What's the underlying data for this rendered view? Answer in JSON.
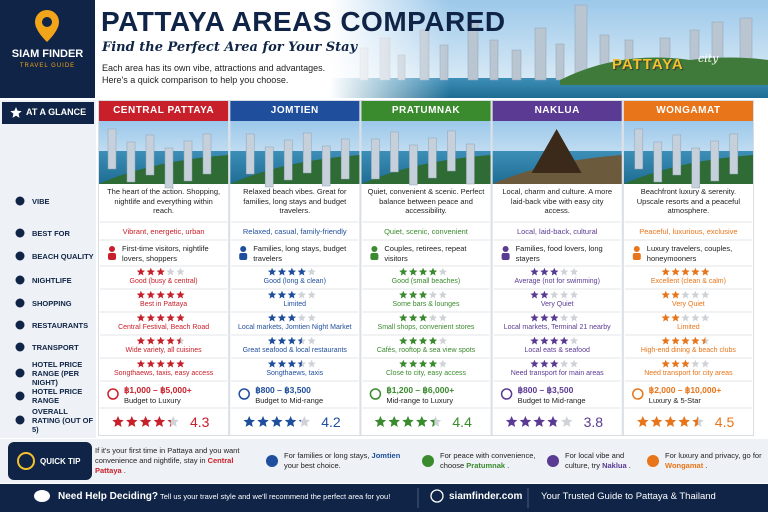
{
  "header": {
    "logo_title": "SIAM FINDER",
    "logo_subtitle": "TRAVEL GUIDE",
    "title": "PATTAYA AREAS COMPARED",
    "subtitle": "Find the Perfect Area for Your Stay",
    "intro": "Each area has its own vibe, attractions and advantages. Here's a quick comparison to help you choose.",
    "city_sign": "PATTAYA",
    "city_script": "city"
  },
  "table": {
    "glance": "AT A GLANCE",
    "row_labels": [
      "VIBE",
      "BEST FOR",
      "BEACH QUALITY",
      "NIGHTLIFE",
      "SHOPPING",
      "RESTAURANTS",
      "TRANSPORT",
      "HOTEL PRICE RANGE (PER NIGHT)",
      "HOTEL PRICE RANGE",
      "OVERALL RATING (OUT OF 5)"
    ],
    "areas": [
      {
        "name": "CENTRAL PATTAYA",
        "color": "#c8202a",
        "vibe": "The heart of the action. Shopping, nightlife and everything within reach.",
        "tag": "Vibrant, energetic, urban",
        "best_for": "First-time visitors, nightlife lovers, shoppers",
        "ratings": [
          {
            "stars": 3,
            "label": "Good (busy & central)"
          },
          {
            "stars": 5,
            "label": "Best in Pattaya"
          },
          {
            "stars": 5,
            "label": "Central Festival, Beach Road"
          },
          {
            "stars": 4.5,
            "label": "Wide variety, all cuisines"
          },
          {
            "stars": 5,
            "label": "Songthaews, taxis, easy access"
          }
        ],
        "price": "฿1,000 – ฿5,000+",
        "price_note": "Budget to Luxury",
        "overall": 4.3
      },
      {
        "name": "JOMTIEN",
        "color": "#1f4e9c",
        "vibe": "Relaxed beach vibes. Great for families, long stays and budget travelers.",
        "tag": "Relaxed, casual, family-friendly",
        "best_for": "Families, long stays, budget travelers",
        "ratings": [
          {
            "stars": 4,
            "label": "Good (long & clean)"
          },
          {
            "stars": 3,
            "label": "Limited"
          },
          {
            "stars": 3,
            "label": "Local markets, Jomtien Night Market"
          },
          {
            "stars": 3.5,
            "label": "Great seafood & local restaurants"
          },
          {
            "stars": 3.5,
            "label": "Songthaews, taxis"
          }
        ],
        "price": "฿800 – ฿3,500",
        "price_note": "Budget to Mid-range",
        "overall": 4.2
      },
      {
        "name": "PRATUMNAK",
        "color": "#3a8a2e",
        "vibe": "Quiet, convenient & scenic. Perfect balance between peace and accessibility.",
        "tag": "Quiet, scenic, convenient",
        "best_for": "Couples, retirees, repeat visitors",
        "ratings": [
          {
            "stars": 4,
            "label": "Good (small beaches)"
          },
          {
            "stars": 3,
            "label": "Some bars & lounges"
          },
          {
            "stars": 3,
            "label": "Small shops, convenient stores"
          },
          {
            "stars": 4,
            "label": "Cafés, rooftop & sea view spots"
          },
          {
            "stars": 4,
            "label": "Close to city, easy access"
          }
        ],
        "price": "฿1,200 – ฿6,000+",
        "price_note": "Mid-range to Luxury",
        "overall": 4.4
      },
      {
        "name": "NAKLUA",
        "color": "#5b3a93",
        "vibe": "Local, charm and culture. A more laid-back vibe with easy city access.",
        "tag": "Local, laid-back, cultural",
        "best_for": "Families, food lovers, long stayers",
        "ratings": [
          {
            "stars": 3,
            "label": "Average (not for swimming)"
          },
          {
            "stars": 2,
            "label": "Very Quiet"
          },
          {
            "stars": 3,
            "label": "Local markets, Terminal 21 nearby"
          },
          {
            "stars": 4,
            "label": "Local eats & seafood"
          },
          {
            "stars": 3,
            "label": "Need transport for main areas"
          }
        ],
        "price": "฿800 – ฿3,500",
        "price_note": "Budget to Mid-range",
        "overall": 3.8
      },
      {
        "name": "WONGAMAT",
        "color": "#e8751a",
        "vibe": "Beachfront luxury & serenity. Upscale resorts and a peaceful atmosphere.",
        "tag": "Peaceful, luxurious, exclusive",
        "best_for": "Luxury travelers, couples, honeymooners",
        "ratings": [
          {
            "stars": 5,
            "label": "Excellent (clean & calm)"
          },
          {
            "stars": 2,
            "label": "Very Quiet"
          },
          {
            "stars": 2,
            "label": "Limited"
          },
          {
            "stars": 4.5,
            "label": "High-end dining & beach clubs"
          },
          {
            "stars": 3,
            "label": "Need transport for city areas"
          }
        ],
        "price": "฿2,000 – ฿10,000+",
        "price_note": "Luxury & 5-Star",
        "overall": 4.5
      }
    ]
  },
  "tips": {
    "label": "QUICK TIP",
    "items": [
      {
        "pre": "If it's your first time in Pattaya and you want convenience and nightlife, stay in",
        "em": "Central Pattaya",
        "post": "."
      },
      {
        "pre": "For families or long stays,",
        "em": "Jomtien",
        "post": "your best choice."
      },
      {
        "pre": "For peace with convenience, choose",
        "em": "Pratumnak",
        "post": "."
      },
      {
        "pre": "For local vibe and culture, try",
        "em": "Naklua",
        "post": "."
      },
      {
        "pre": "For luxury and privacy, go for",
        "em": "Wongamat",
        "post": "."
      }
    ]
  },
  "footer": {
    "cta": "Need Help Deciding?",
    "cta_text": "Tell us your travel style and we'll recommend the perfect area for you!",
    "site": "siamfinder.com",
    "tagline": "Your Trusted Guide to Pattaya & Thailand"
  }
}
